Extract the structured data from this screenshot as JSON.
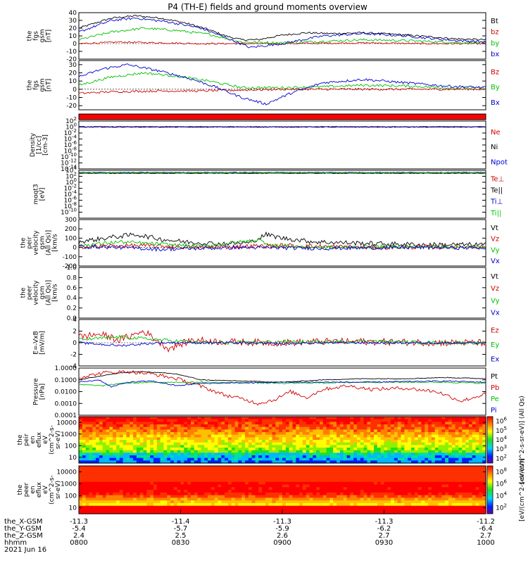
{
  "title": "P4 (TH-E) fields and ground moments overview",
  "chart_data": [
    {
      "type": "line",
      "ylabel": [
        "the",
        "fgs",
        "gsm",
        "[nT]"
      ],
      "ticks": [
        -20,
        -10,
        0,
        10,
        20,
        30,
        40
      ],
      "ylim": [
        -20,
        40
      ],
      "legend": [
        "Bt",
        "bz",
        "by",
        "bx"
      ],
      "series": [
        {
          "name": "Bt",
          "color": "#000000",
          "x": [
            0.0,
            0.08,
            0.14,
            0.2,
            0.26,
            0.32,
            0.36,
            0.4,
            0.44,
            0.5,
            0.56,
            0.62,
            0.7,
            0.78,
            0.86,
            0.93,
            1.0
          ],
          "y": [
            20,
            33,
            36,
            33,
            27,
            18,
            10,
            5,
            5,
            11,
            14,
            13,
            14,
            12,
            9,
            6,
            5
          ],
          "noise": 1.2
        },
        {
          "name": "bz",
          "color": "#d00000",
          "x": [
            0.0,
            0.1,
            0.2,
            0.3,
            0.5,
            0.7,
            0.85,
            1.0
          ],
          "y": [
            0,
            2,
            1,
            0,
            0,
            1,
            0,
            0
          ],
          "noise": 1.0
        },
        {
          "name": "by",
          "color": "#00c000",
          "x": [
            0.0,
            0.08,
            0.16,
            0.24,
            0.32,
            0.4,
            0.5,
            0.6,
            0.7,
            0.8,
            0.9,
            1.0
          ],
          "y": [
            5,
            15,
            20,
            17,
            12,
            2,
            1,
            3,
            5,
            4,
            2,
            1
          ],
          "noise": 1.5
        },
        {
          "name": "bx",
          "color": "#0000d0",
          "x": [
            0.0,
            0.08,
            0.14,
            0.22,
            0.3,
            0.36,
            0.42,
            0.5,
            0.6,
            0.7,
            0.8,
            0.9,
            1.0
          ],
          "y": [
            15,
            30,
            33,
            28,
            20,
            8,
            -5,
            0,
            10,
            13,
            10,
            5,
            2
          ],
          "noise": 1.5
        }
      ]
    },
    {
      "type": "line",
      "ylabel": [
        "the",
        "fgs",
        "gsm",
        "[nT]"
      ],
      "ticks": [
        -20,
        -10,
        0,
        10,
        20,
        30
      ],
      "ylim": [
        -25,
        35
      ],
      "legend": [
        "Bz",
        "By",
        "Bx"
      ],
      "series": [
        {
          "name": "Bz",
          "color": "#d00000",
          "x": [
            0.0,
            0.08,
            0.2,
            0.3,
            0.5,
            0.7,
            1.0
          ],
          "y": [
            -5,
            -3,
            -2,
            -2,
            0,
            0,
            0
          ],
          "noise": 1.3
        },
        {
          "name": "By",
          "color": "#00c000",
          "x": [
            0.0,
            0.08,
            0.16,
            0.24,
            0.32,
            0.4,
            0.5,
            0.6,
            0.7,
            0.8,
            0.9,
            1.0
          ],
          "y": [
            5,
            15,
            20,
            16,
            10,
            2,
            2,
            3,
            5,
            4,
            2,
            1
          ],
          "noise": 1.5
        },
        {
          "name": "Bx",
          "color": "#0000d0",
          "x": [
            0.0,
            0.06,
            0.12,
            0.2,
            0.28,
            0.34,
            0.4,
            0.46,
            0.52,
            0.6,
            0.7,
            0.8,
            0.9,
            1.0
          ],
          "y": [
            15,
            25,
            30,
            22,
            12,
            2,
            -10,
            -18,
            -5,
            8,
            12,
            8,
            4,
            2
          ],
          "noise": 1.5
        }
      ]
    },
    {
      "type": "line",
      "ylabel": [
        "Density",
        "[1/cc]",
        "[cm-3]"
      ],
      "scale": "log",
      "ticks": [
        "10^-14",
        "10^-12",
        "10^-10",
        "10^-8",
        "10^-6",
        "10^-4",
        "10^-2",
        "10^0",
        "10^2"
      ],
      "ylim": [
        -14,
        2
      ],
      "legend": [
        "Ne",
        "Ni",
        "Npot"
      ],
      "series": [
        {
          "name": "Ne",
          "color": "#d00000",
          "x": [
            0.0,
            0.3,
            0.6,
            1.0
          ],
          "y": [
            0,
            0,
            0,
            0
          ],
          "noise": 0.15
        },
        {
          "name": "Ni",
          "color": "#000000",
          "x": [
            0.0,
            0.3,
            0.6,
            1.0
          ],
          "y": [
            0,
            0,
            0,
            0
          ],
          "noise": 0.1
        },
        {
          "name": "Npot",
          "color": "#0000d0",
          "x": [
            0.0,
            0.3,
            0.6,
            1.0
          ],
          "y": [
            0.1,
            0.1,
            0.1,
            0.1
          ],
          "noise": 0.1
        }
      ]
    },
    {
      "type": "line",
      "ylabel": [
        "moqt3",
        "[eV]"
      ],
      "scale": "log",
      "ticks": [
        "10^-10",
        "10^-8",
        "10^-6",
        "10^-4",
        "10^-2",
        "10^0",
        "10^2",
        "10^4"
      ],
      "ylim": [
        -12,
        4
      ],
      "legend": [
        "Te⊥",
        "Te||",
        "Ti⊥",
        "Ti||"
      ],
      "series": [
        {
          "name": "Te⊥",
          "color": "#d00000",
          "x": [
            0.0,
            0.5,
            1.0
          ],
          "y": [
            3.2,
            3.1,
            3.2
          ],
          "noise": 0.12
        },
        {
          "name": "Te||",
          "color": "#000000",
          "x": [
            0.0,
            0.5,
            1.0
          ],
          "y": [
            3.0,
            3.0,
            3.0
          ],
          "noise": 0.1
        },
        {
          "name": "Ti⊥",
          "color": "#0000d0",
          "x": [
            0.0,
            0.5,
            1.0
          ],
          "y": [
            3.3,
            3.3,
            3.3
          ],
          "noise": 0.1
        },
        {
          "name": "Ti||",
          "color": "#00c000",
          "x": [
            0.0,
            0.5,
            1.0
          ],
          "y": [
            3.2,
            3.2,
            3.2
          ],
          "noise": 0.12
        }
      ]
    },
    {
      "type": "line",
      "ylabel": [
        "the",
        "peir",
        "velocity",
        "gsm",
        "(All Qs)]",
        "[km/s"
      ],
      "ticks": [
        -200,
        -100,
        0,
        100,
        200,
        300
      ],
      "ylim": [
        -200,
        300
      ],
      "legend": [
        "Vt",
        "Vz",
        "Vy",
        "Vx"
      ],
      "series": [
        {
          "name": "Vt",
          "color": "#000000",
          "x": [
            0.0,
            0.08,
            0.14,
            0.2,
            0.26,
            0.34,
            0.42,
            0.46,
            0.5,
            0.58,
            0.66,
            0.74,
            0.84,
            1.0
          ],
          "y": [
            60,
            110,
            140,
            90,
            60,
            40,
            50,
            140,
            100,
            60,
            50,
            40,
            30,
            30
          ],
          "noise": 25
        },
        {
          "name": "Vz",
          "color": "#d00000",
          "x": [
            0.0,
            0.15,
            0.3,
            0.5,
            0.7,
            1.0
          ],
          "y": [
            10,
            20,
            0,
            20,
            0,
            10
          ],
          "noise": 25
        },
        {
          "name": "Vy",
          "color": "#00c000",
          "x": [
            0.0,
            0.1,
            0.18,
            0.3,
            0.44,
            0.48,
            0.6,
            0.8,
            1.0
          ],
          "y": [
            20,
            60,
            40,
            10,
            80,
            20,
            0,
            10,
            5
          ],
          "noise": 20
        },
        {
          "name": "Vx",
          "color": "#0000d0",
          "x": [
            0.0,
            0.1,
            0.2,
            0.4,
            0.6,
            0.8,
            1.0
          ],
          "y": [
            10,
            0,
            -20,
            0,
            -10,
            0,
            -5
          ],
          "noise": 20
        }
      ]
    },
    {
      "type": "line",
      "ylabel": [
        "the",
        "peer",
        "velocity",
        "gsm",
        "(All Qs)]",
        "[km/s"
      ],
      "ticks": [
        0.0,
        0.2,
        0.4,
        0.6,
        0.8,
        1.0
      ],
      "ylim": [
        0,
        1
      ],
      "legend": [
        "Vt",
        "Vz",
        "Vy",
        "Vx"
      ],
      "series": []
    },
    {
      "type": "line",
      "ylabel": [
        "E=-VxB",
        "[mV/m]"
      ],
      "ticks": [
        -4,
        -2,
        0,
        2,
        4
      ],
      "ylim": [
        -4,
        4
      ],
      "legend": [
        "Ez",
        "Ey",
        "Ex"
      ],
      "series": [
        {
          "name": "Ez",
          "color": "#d00000",
          "x": [
            0.0,
            0.05,
            0.1,
            0.16,
            0.22,
            0.28,
            0.34,
            0.4,
            0.5,
            0.6,
            0.7,
            0.8,
            0.9,
            1.0
          ],
          "y": [
            1,
            1.5,
            0.5,
            2,
            -1,
            0.5,
            0.2,
            0.1,
            0,
            0.2,
            0.2,
            0.1,
            0,
            0
          ],
          "noise": 0.6
        },
        {
          "name": "Ey",
          "color": "#00c000",
          "x": [
            0.0,
            0.1,
            0.2,
            0.3,
            0.4,
            0.5,
            0.6,
            0.7,
            0.8,
            0.9,
            1.0
          ],
          "y": [
            0.5,
            1,
            0.5,
            0,
            0,
            0.2,
            0.1,
            0.3,
            0.1,
            0,
            0
          ],
          "noise": 0.3
        },
        {
          "name": "Ex",
          "color": "#0000d0",
          "x": [
            0.0,
            0.1,
            0.2,
            0.3,
            0.4,
            0.5,
            0.6,
            0.7,
            0.8,
            0.9,
            1.0
          ],
          "y": [
            0,
            -0.5,
            0,
            0,
            0,
            -0.2,
            0,
            0,
            0,
            0,
            0
          ],
          "noise": 0.2
        }
      ]
    },
    {
      "type": "line",
      "ylabel": [
        "Pressure",
        "[nPa]"
      ],
      "scale": "log",
      "ticks": [
        "0.0001",
        "0.0010",
        "0.0100",
        "0.1000",
        "1.0000"
      ],
      "ylim": [
        -4,
        0
      ],
      "legend": [
        "Pt",
        "Pb",
        "Pe",
        "Pi"
      ],
      "series": [
        {
          "name": "Pt",
          "color": "#000000",
          "x": [
            0.0,
            0.1,
            0.16,
            0.24,
            0.3,
            0.4,
            0.5,
            0.6,
            0.7,
            0.8,
            0.9,
            1.0
          ],
          "y": [
            -1.0,
            -0.4,
            -0.3,
            -0.5,
            -1.0,
            -1.1,
            -1.2,
            -1.0,
            -0.9,
            -0.9,
            -0.8,
            -0.9
          ],
          "noise": 0.03
        },
        {
          "name": "Pb",
          "color": "#d00000",
          "x": [
            0.0,
            0.06,
            0.12,
            0.18,
            0.24,
            0.28,
            0.32,
            0.36,
            0.4,
            0.44,
            0.48,
            0.52,
            0.56,
            0.6,
            0.66,
            0.72,
            0.8,
            0.88,
            0.94,
            1.0
          ],
          "y": [
            -0.8,
            -0.4,
            -0.3,
            -0.5,
            -0.9,
            -1.3,
            -1.8,
            -2.3,
            -2.6,
            -3.0,
            -2.7,
            -2.0,
            -2.5,
            -1.8,
            -1.5,
            -1.8,
            -1.7,
            -2.0,
            -2.8,
            -2.2
          ],
          "noise": 0.15
        },
        {
          "name": "Pe",
          "color": "#00c000",
          "x": [
            0.0,
            0.06,
            0.1,
            0.2,
            0.3,
            0.5,
            0.7,
            0.9,
            1.0
          ],
          "y": [
            -1.4,
            -1.5,
            -1.3,
            -1.2,
            -1.2,
            -1.3,
            -1.2,
            -1.2,
            -1.3
          ],
          "noise": 0.05
        },
        {
          "name": "Pi",
          "color": "#0000d0",
          "x": [
            0.0,
            0.05,
            0.08,
            0.12,
            0.18,
            0.24,
            0.3,
            0.5,
            0.7,
            0.9,
            1.0
          ],
          "y": [
            -1.2,
            -1.0,
            -1.6,
            -1.2,
            -1.1,
            -1.5,
            -1.3,
            -1.2,
            -1.2,
            -1.1,
            -1.2
          ],
          "noise": 0.05
        }
      ]
    },
    {
      "type": "heatmap",
      "ylabel": [
        "the",
        "peir",
        "en",
        "eflux",
        "eV",
        "(cm^2-s-",
        "sr-eV)"
      ],
      "ticks": [
        "10",
        "100",
        "1000",
        "10000"
      ],
      "colorbar_ticks": [
        "10^2",
        "10^3",
        "10^4",
        "10^5",
        "10^6"
      ],
      "colorbar_label": "[eV/(cm^2-s-sr-eV)] (All Qs)"
    },
    {
      "type": "heatmap",
      "ylabel": [
        "the",
        "peer",
        "en",
        "eflux",
        "eV",
        "(cm^2-s-",
        "sr-eV)"
      ],
      "ticks": [
        "10",
        "100",
        "1000",
        "10000"
      ],
      "colorbar_ticks": [
        "10^2",
        "10^4",
        "10^6",
        "10^8"
      ],
      "colorbar_label": "[eV/(cm^2-s-sr-eV)]"
    }
  ],
  "x_axis": {
    "row_labels": [
      "the_X-GSM",
      "the_Y-GSM",
      "the_Z-GSM",
      "hhmm",
      "2021 Jun 16"
    ],
    "columns": [
      {
        "x": "-11.3",
        "y": "-5.4",
        "z": "2.4",
        "t": "0800"
      },
      {
        "x": "-11.4",
        "y": "-5.7",
        "z": "2.5",
        "t": "0830"
      },
      {
        "x": "-11.3",
        "y": "-5.9",
        "z": "2.6",
        "t": "0900"
      },
      {
        "x": "-11.3",
        "y": "-6.2",
        "z": "2.7",
        "t": "0930"
      },
      {
        "x": "-11.2",
        "y": "-6.4",
        "z": "2.7",
        "t": "1000"
      }
    ]
  }
}
